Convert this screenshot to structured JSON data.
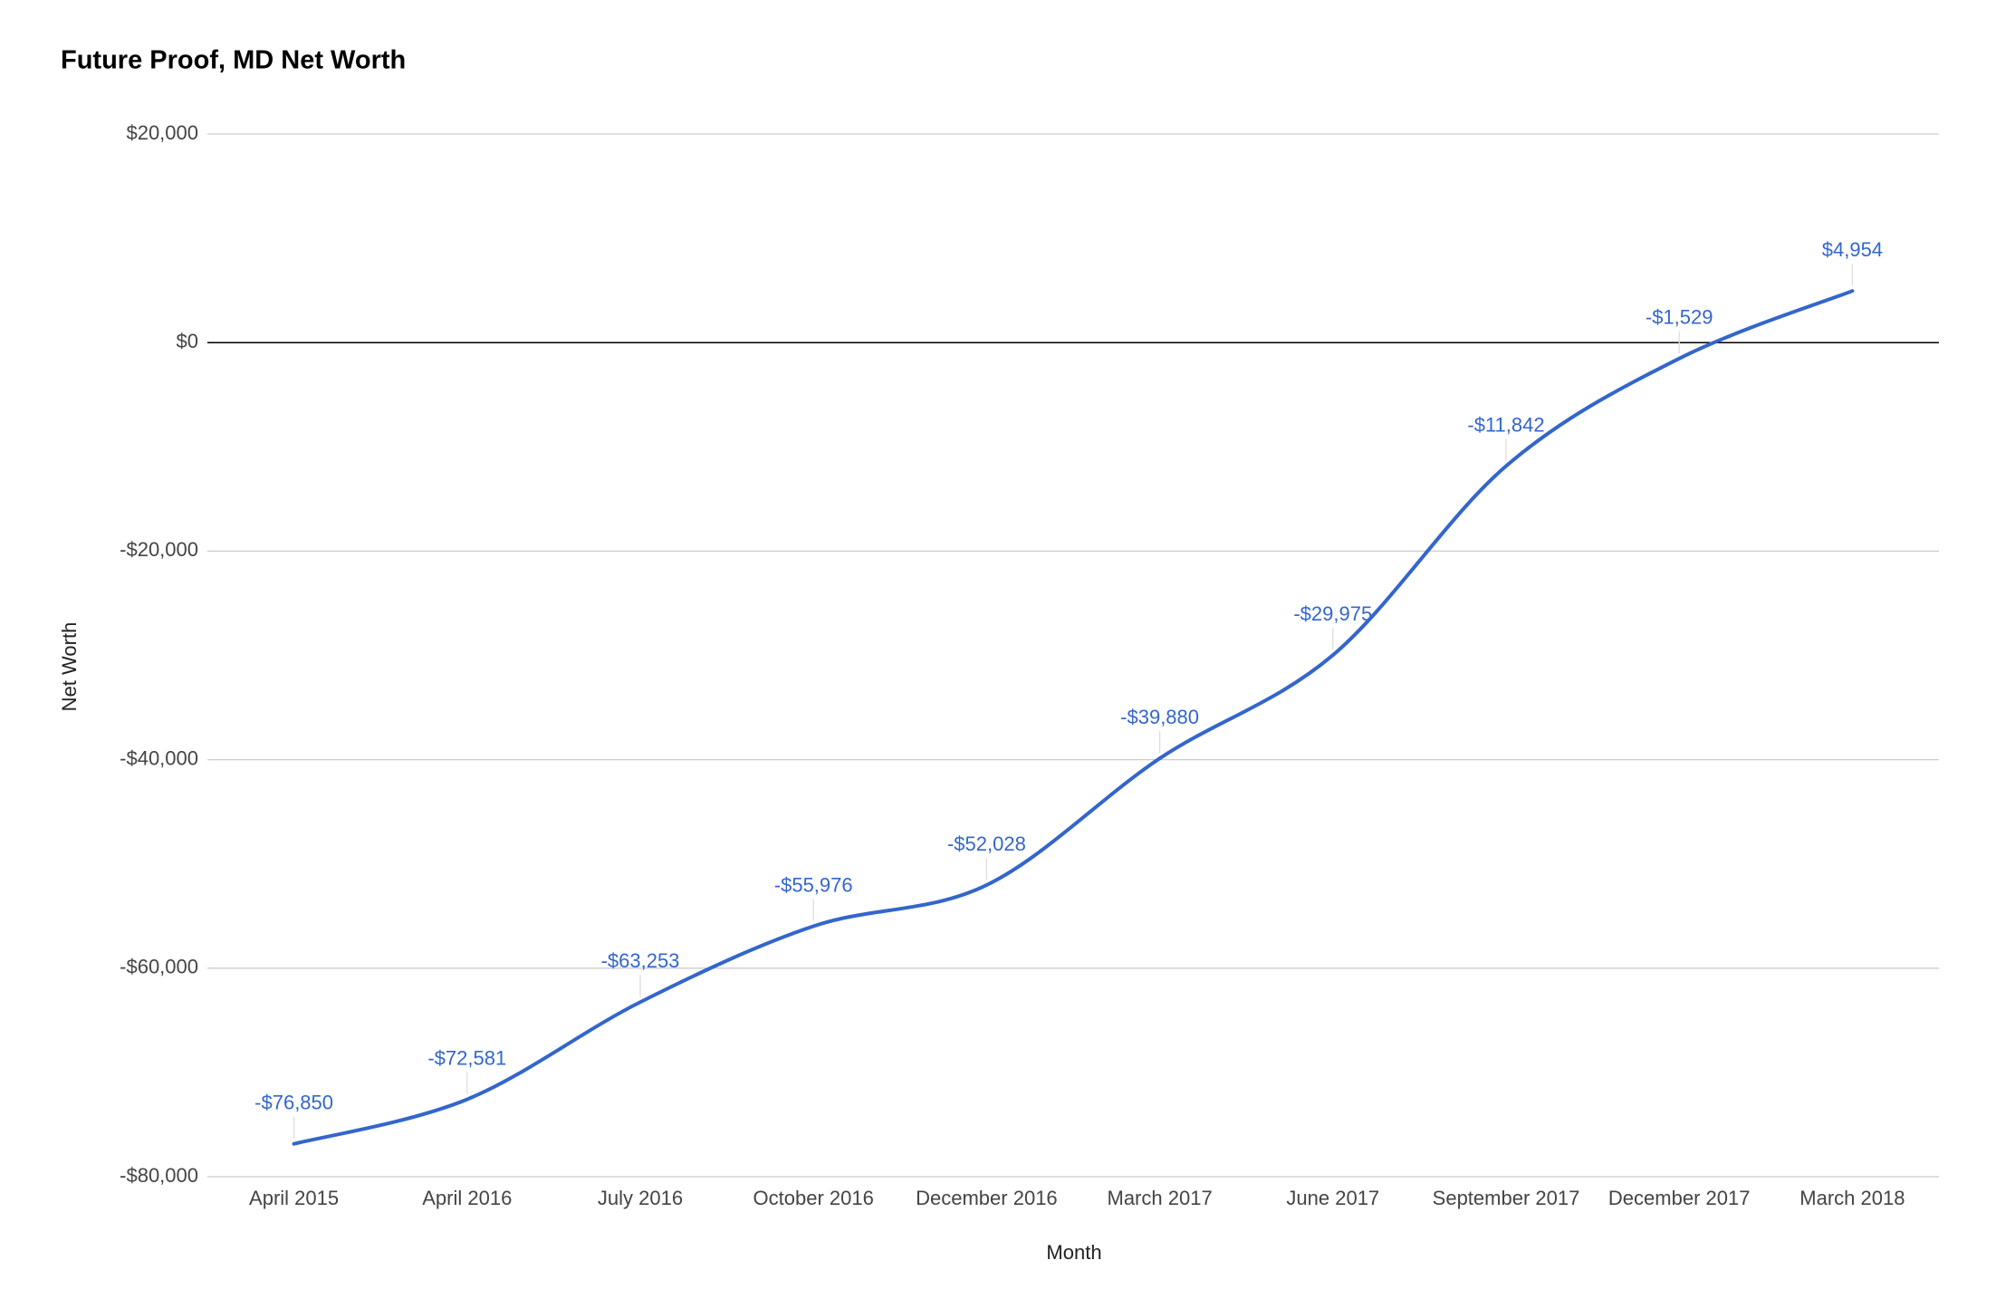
{
  "chart_data": {
    "type": "line",
    "title": "Future Proof, MD Net Worth",
    "x_label": "Month",
    "y_label": "Net Worth",
    "categories": [
      "April 2015",
      "April 2016",
      "July 2016",
      "October 2016",
      "December 2016",
      "March 2017",
      "June 2017",
      "September 2017",
      "December 2017",
      "March 2018"
    ],
    "series": [
      {
        "name": "Net Worth",
        "color": "#3366cc",
        "values": [
          -76850,
          -72581,
          -63253,
          -55976,
          -52028,
          -39880,
          -29975,
          -11842,
          -1529,
          4954
        ],
        "value_labels": [
          "-$76,850",
          "-$72,581",
          "-$63,253",
          "-$55,976",
          "-$52,028",
          "-$39,880",
          "-$29,975",
          "-$11,842",
          "-$1,529",
          "$4,954"
        ]
      }
    ],
    "ylim": [
      -80000,
      20000
    ],
    "yticks": [
      {
        "value": -80000,
        "label": "-$80,000"
      },
      {
        "value": -60000,
        "label": "-$60,000"
      },
      {
        "value": -40000,
        "label": "-$40,000"
      },
      {
        "value": -20000,
        "label": "-$20,000"
      },
      {
        "value": 0,
        "label": "$0"
      },
      {
        "value": 20000,
        "label": "$20,000"
      }
    ],
    "grid": true,
    "smooth": true
  }
}
